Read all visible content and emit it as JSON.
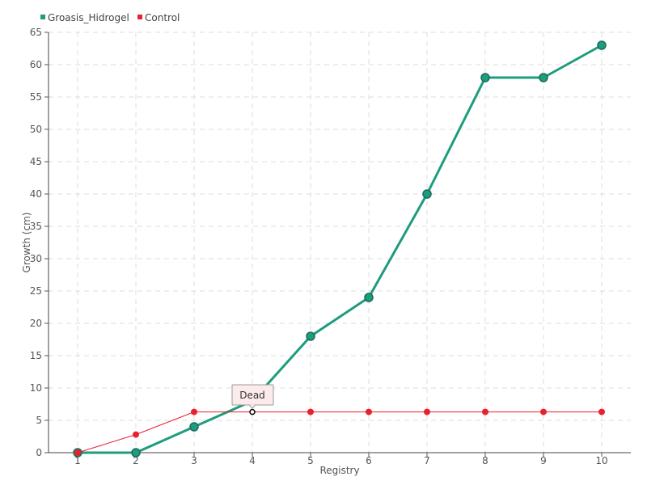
{
  "chart_data": {
    "type": "line",
    "title": "",
    "xlabel": "Registry",
    "ylabel": "Growth (cm)",
    "x": [
      1,
      2,
      3,
      4,
      5,
      6,
      7,
      8,
      9,
      10
    ],
    "ylim": [
      0,
      65
    ],
    "yticks": [
      0,
      5,
      10,
      15,
      20,
      25,
      30,
      35,
      40,
      45,
      50,
      55,
      60,
      65
    ],
    "grid": true,
    "legend_position": "top-left",
    "series": [
      {
        "name": "Groasis_Hidrogel",
        "color": "#1f9b7e",
        "values": [
          0,
          0,
          4,
          8,
          18,
          24,
          40,
          58,
          58,
          63
        ]
      },
      {
        "name": "Control",
        "color": "#e8202f",
        "values": [
          0,
          2.8,
          6.3,
          6.3,
          6.3,
          6.3,
          6.3,
          6.3,
          6.3,
          6.3
        ]
      }
    ],
    "annotation": {
      "text": "Dead",
      "series": "Control",
      "x": 4,
      "y": 6.3
    }
  }
}
